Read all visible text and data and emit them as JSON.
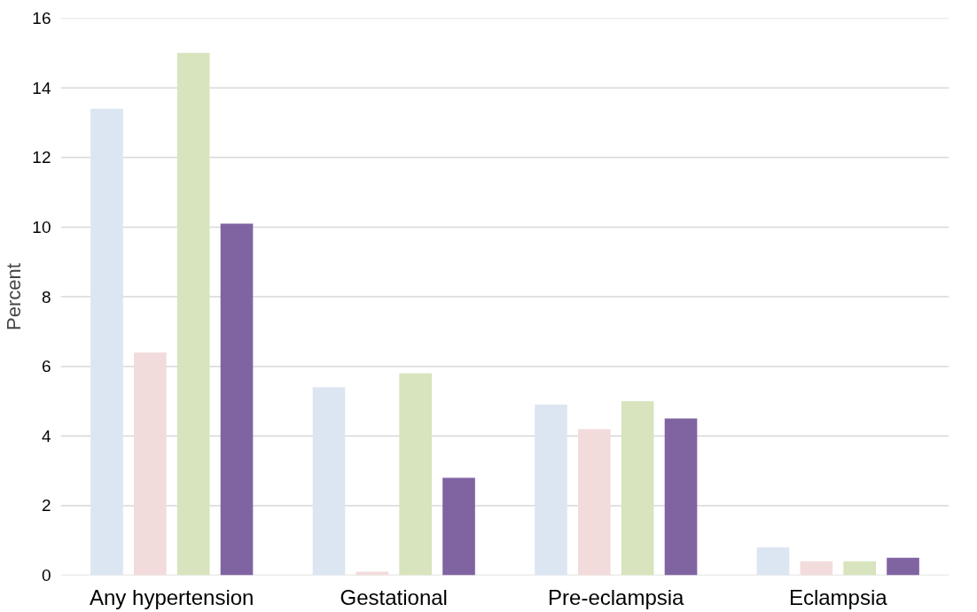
{
  "chart_data": {
    "type": "bar",
    "ylabel": "Percent",
    "categories": [
      "Any hypertension",
      "Gestational",
      "Pre-eclampsia",
      "Eclampsia"
    ],
    "series": [
      {
        "color": "#dce6f2",
        "values": [
          13.4,
          5.4,
          4.9,
          0.8
        ]
      },
      {
        "color": "#f2dcdb",
        "values": [
          6.4,
          0.1,
          4.2,
          0.4
        ]
      },
      {
        "color": "#d7e4bd",
        "values": [
          15.0,
          5.8,
          5.0,
          0.4
        ]
      },
      {
        "color": "#8064a2",
        "values": [
          10.1,
          2.8,
          4.5,
          0.5
        ]
      }
    ],
    "ylim": [
      0,
      16
    ],
    "yticks": [
      0,
      2,
      4,
      6,
      8,
      10,
      12,
      14,
      16
    ],
    "grid": "y"
  }
}
